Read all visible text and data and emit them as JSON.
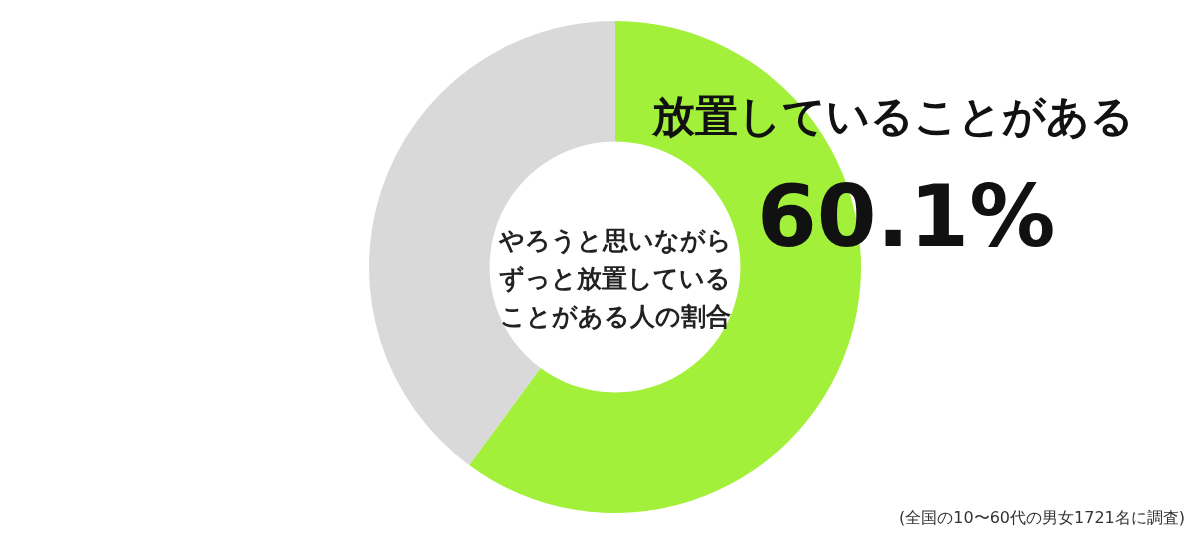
{
  "chart_data": {
    "type": "donut",
    "title": "やろうと思いながらずっと放置していることがある人の割合",
    "categories": [
      "放置していることがある",
      null
    ],
    "values": [
      60.1,
      39.9
    ],
    "colors": [
      "#a3f03a",
      "#d9d9d9"
    ],
    "value_labels": [
      "60.1%",
      null
    ],
    "annotations": [
      "(全国の10〜60代の男女1721名に調査)"
    ]
  }
}
